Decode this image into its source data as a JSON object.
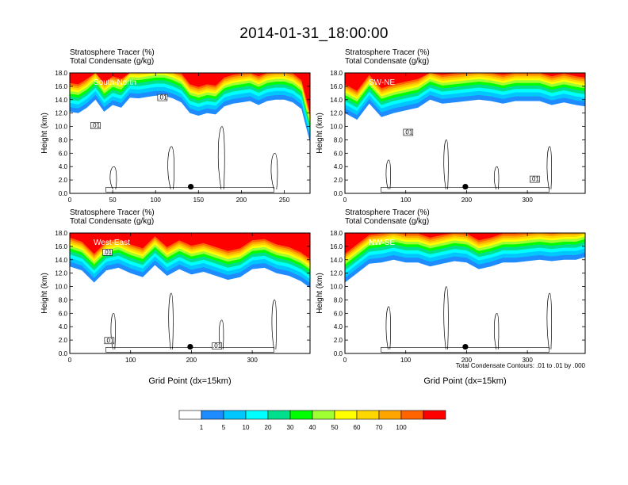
{
  "title": "2014-01-31_18:00:00",
  "colorbar": {
    "labels": [
      "1",
      "5",
      "10",
      "20",
      "30",
      "40",
      "50",
      "60",
      "70",
      "100"
    ],
    "colors": [
      "#ffffff",
      "#1e8cff",
      "#00c8ff",
      "#00ffff",
      "#00e08c",
      "#00ff00",
      "#a0ff32",
      "#ffff00",
      "#ffd700",
      "#ffa500",
      "#ff6400",
      "#ff0000"
    ]
  },
  "contour_note": "Total Condensate Contours: .01 to .01 by .000",
  "chart_data": [
    {
      "type": "heatmap",
      "name": "South-North",
      "header": [
        "Stratosphere Tracer   (%)",
        "Total Condensate   (g/kg)"
      ],
      "region_label": "South-North",
      "ylabel": "Height (km)",
      "xlabel": "",
      "xlim": [
        0,
        280
      ],
      "ylim": [
        0,
        18
      ],
      "xticks": [
        "0",
        "50",
        "100",
        "150",
        "200",
        "250"
      ],
      "xtick_values": [
        0,
        50,
        100,
        150,
        200,
        250
      ],
      "yticks": [
        "0.0",
        "2.0",
        "4.0",
        "6.0",
        "8.0",
        "10.0",
        "12.0",
        "14.0",
        "16.0",
        "18.0"
      ],
      "contour_labels": [
        {
          "text": ".01",
          "x": 108,
          "y": 14.2
        },
        {
          "text": ".01",
          "x": 30,
          "y": 10.0
        }
      ],
      "marker": {
        "x": 141,
        "y": 1.0
      },
      "profile": {
        "x": [
          0,
          10,
          20,
          30,
          40,
          50,
          60,
          70,
          80,
          90,
          100,
          110,
          120,
          130,
          140,
          150,
          160,
          170,
          180,
          190,
          200,
          210,
          220,
          230,
          240,
          250,
          260,
          270,
          280
        ],
        "base": [
          13.2,
          13.0,
          13.8,
          15.0,
          13.2,
          14.2,
          13.8,
          15.3,
          15.2,
          15.4,
          15.6,
          15.6,
          15.2,
          14.6,
          13.0,
          12.6,
          13.0,
          12.8,
          14.0,
          14.4,
          14.6,
          14.8,
          14.2,
          14.8,
          15.0,
          15.0,
          14.6,
          13.6,
          8.6
        ]
      }
    },
    {
      "type": "heatmap",
      "name": "SW-NE",
      "header": [
        "Stratosphere Tracer   (%)",
        "Total Condensate   (g/kg)"
      ],
      "region_label": "SW-NE",
      "ylabel": "Height (km)",
      "xlabel": "",
      "xlim": [
        0,
        395
      ],
      "ylim": [
        0,
        18
      ],
      "xticks": [
        "0",
        "100",
        "200",
        "300"
      ],
      "xtick_values": [
        0,
        100,
        200,
        300
      ],
      "yticks": [
        "0.0",
        "2.0",
        "4.0",
        "6.0",
        "8.0",
        "10.0",
        "12.0",
        "14.0",
        "16.0",
        "18.0"
      ],
      "contour_labels": [
        {
          "text": ".01",
          "x": 104,
          "y": 9.0
        },
        {
          "text": ".01",
          "x": 312,
          "y": 2.0
        }
      ],
      "marker": {
        "x": 198,
        "y": 1.0
      },
      "profile": {
        "x": [
          0,
          20,
          40,
          60,
          80,
          100,
          120,
          140,
          160,
          180,
          200,
          220,
          240,
          260,
          280,
          300,
          320,
          340,
          360,
          380,
          395
        ],
        "base": [
          13.0,
          12.0,
          14.4,
          12.4,
          13.0,
          13.4,
          13.8,
          15.0,
          14.4,
          14.6,
          14.8,
          15.0,
          14.8,
          14.4,
          14.8,
          14.8,
          14.8,
          14.2,
          14.6,
          14.2,
          14.0
        ]
      }
    },
    {
      "type": "heatmap",
      "name": "West-East",
      "header": [
        "Stratosphere Tracer   (%)",
        "Total Condensate   (g/kg)"
      ],
      "region_label": "West-East",
      "ylabel": "Height (km)",
      "xlabel": "Grid Point (dx=15km)",
      "xlim": [
        0,
        395
      ],
      "ylim": [
        0,
        18
      ],
      "xticks": [
        "0",
        "100",
        "200",
        "300"
      ],
      "xtick_values": [
        0,
        100,
        200,
        300
      ],
      "yticks": [
        "0.0",
        "2.0",
        "4.0",
        "6.0",
        "8.0",
        "10.0",
        "12.0",
        "14.0",
        "16.0",
        "18.0"
      ],
      "contour_labels": [
        {
          "text": ".01",
          "x": 62,
          "y": 15.0
        },
        {
          "text": ".01",
          "x": 65,
          "y": 1.8
        },
        {
          "text": ".01",
          "x": 242,
          "y": 1.0
        }
      ],
      "marker": {
        "x": 198,
        "y": 1.0
      },
      "profile": {
        "x": [
          0,
          20,
          40,
          60,
          80,
          100,
          120,
          140,
          160,
          180,
          200,
          220,
          240,
          260,
          280,
          300,
          320,
          340,
          360,
          380,
          395
        ],
        "base": [
          14.0,
          13.4,
          11.6,
          13.4,
          13.8,
          13.0,
          12.4,
          14.2,
          12.6,
          13.6,
          12.8,
          13.2,
          12.6,
          12.0,
          12.4,
          13.6,
          13.8,
          13.0,
          12.6,
          11.8,
          10.8
        ]
      }
    },
    {
      "type": "heatmap",
      "name": "NW-SE",
      "header": [
        "Stratosphere Tracer   (%)",
        "Total Condensate   (g/kg)"
      ],
      "region_label": "NW-SE",
      "ylabel": "Height (km)",
      "xlabel": "Grid Point (dx=15km)",
      "xlim": [
        0,
        395
      ],
      "ylim": [
        0,
        18
      ],
      "xticks": [
        "0",
        "100",
        "200",
        "300"
      ],
      "xtick_values": [
        0,
        100,
        200,
        300
      ],
      "yticks": [
        "0.0",
        "2.0",
        "4.0",
        "6.0",
        "8.0",
        "10.0",
        "12.0",
        "14.0",
        "16.0",
        "18.0"
      ],
      "contour_labels": [],
      "marker": {
        "x": 198,
        "y": 1.0
      },
      "profile": {
        "x": [
          0,
          20,
          40,
          60,
          80,
          100,
          120,
          140,
          160,
          180,
          200,
          220,
          240,
          260,
          280,
          300,
          320,
          340,
          360,
          380,
          395
        ],
        "base": [
          11.6,
          13.0,
          14.4,
          14.6,
          15.0,
          14.6,
          14.6,
          14.0,
          14.4,
          14.8,
          14.6,
          13.6,
          14.0,
          14.6,
          14.6,
          14.8,
          15.0,
          14.8,
          15.0,
          15.0,
          15.4
        ]
      }
    }
  ]
}
